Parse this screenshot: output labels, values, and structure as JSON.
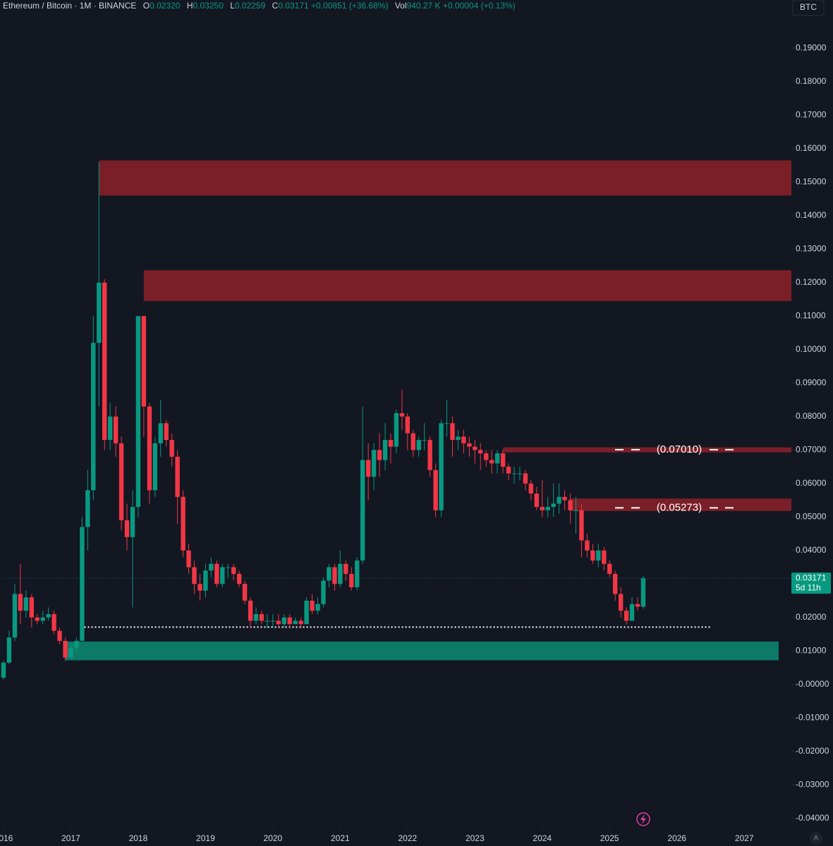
{
  "ui": {
    "currency": "BTC",
    "auto": "A"
  },
  "header": {
    "symbol": "Ethereum / Bitcoin · 1M · BINANCE",
    "o_label": "O",
    "o": "0.02320",
    "h_label": "H",
    "h": "0.03250",
    "l_label": "L",
    "l": "0.02259",
    "c_label": "C",
    "c": "0.03171",
    "change": "+0.00851 (+36.68%)",
    "vol_label": "Vol",
    "vol": "940.27 K",
    "vol_change": "+0.00004 (+0.13%)"
  },
  "chart_data": {
    "type": "candlestick",
    "up_color": "#089981",
    "down_color": "#f23645",
    "x": [
      2016,
      2016.083,
      2016.167,
      2016.25,
      2016.333,
      2016.417,
      2016.5,
      2016.583,
      2016.667,
      2016.75,
      2016.833,
      2016.917,
      2017,
      2017.083,
      2017.167,
      2017.25,
      2017.333,
      2017.417,
      2017.5,
      2017.583,
      2017.667,
      2017.75,
      2017.833,
      2017.917,
      2018,
      2018.083,
      2018.167,
      2018.25,
      2018.333,
      2018.417,
      2018.5,
      2018.583,
      2018.667,
      2018.75,
      2018.833,
      2018.917,
      2019,
      2019.083,
      2019.167,
      2019.25,
      2019.333,
      2019.417,
      2019.5,
      2019.583,
      2019.667,
      2019.75,
      2019.833,
      2019.917,
      2020,
      2020.083,
      2020.167,
      2020.25,
      2020.333,
      2020.417,
      2020.5,
      2020.583,
      2020.667,
      2020.75,
      2020.833,
      2020.917,
      2021,
      2021.083,
      2021.167,
      2021.25,
      2021.333,
      2021.417,
      2021.5,
      2021.583,
      2021.667,
      2021.75,
      2021.833,
      2021.917,
      2022,
      2022.083,
      2022.167,
      2022.25,
      2022.333,
      2022.417,
      2022.5,
      2022.583,
      2022.667,
      2022.75,
      2022.833,
      2022.917,
      2023,
      2023.083,
      2023.167,
      2023.25,
      2023.333,
      2023.417,
      2023.5,
      2023.583,
      2023.667,
      2023.75,
      2023.833,
      2023.917,
      2024,
      2024.083,
      2024.167,
      2024.25,
      2024.333,
      2024.417,
      2024.5,
      2024.583,
      2024.667,
      2024.75,
      2024.833,
      2024.917,
      2025,
      2025.083,
      2025.167,
      2025.25,
      2025.333,
      2025.417,
      2025.5
    ],
    "open": [
      0.002,
      0.0065,
      0.014,
      0.027,
      0.022,
      0.026,
      0.02,
      0.019,
      0.02,
      0.021,
      0.016,
      0.013,
      0.008,
      0.011,
      0.013,
      0.047,
      0.058,
      0.102,
      0.12,
      0.073,
      0.08,
      0.072,
      0.049,
      0.044,
      0.053,
      0.11,
      0.083,
      0.058,
      0.072,
      0.078,
      0.073,
      0.068,
      0.056,
      0.04,
      0.035,
      0.03,
      0.028,
      0.034,
      0.036,
      0.03,
      0.035,
      0.035,
      0.033,
      0.03,
      0.025,
      0.019,
      0.021,
      0.019,
      0.019,
      0.019,
      0.018,
      0.02,
      0.018,
      0.019,
      0.018,
      0.025,
      0.022,
      0.024,
      0.031,
      0.035,
      0.03,
      0.036,
      0.033,
      0.029,
      0.037,
      0.067,
      0.062,
      0.07,
      0.067,
      0.073,
      0.071,
      0.081,
      0.08,
      0.075,
      0.07,
      0.073,
      0.073,
      0.064,
      0.052,
      0.078,
      0.078,
      0.073,
      0.074,
      0.072,
      0.071,
      0.07,
      0.069,
      0.067,
      0.066,
      0.069,
      0.065,
      0.063,
      0.063,
      0.063,
      0.06,
      0.057,
      0.053,
      0.052,
      0.053,
      0.054,
      0.056,
      0.055,
      0.052,
      0.052,
      0.043,
      0.04,
      0.037,
      0.04,
      0.036,
      0.033,
      0.027,
      0.022,
      0.019,
      0.024,
      0.0232
    ],
    "high": [
      0.007,
      0.016,
      0.03,
      0.036,
      0.028,
      0.027,
      0.021,
      0.022,
      0.023,
      0.022,
      0.017,
      0.014,
      0.012,
      0.014,
      0.05,
      0.064,
      0.11,
      0.156,
      0.121,
      0.084,
      0.083,
      0.074,
      0.054,
      0.058,
      0.11,
      0.11,
      0.084,
      0.074,
      0.085,
      0.079,
      0.075,
      0.07,
      0.058,
      0.042,
      0.037,
      0.033,
      0.036,
      0.038,
      0.037,
      0.036,
      0.036,
      0.036,
      0.034,
      0.031,
      0.026,
      0.023,
      0.022,
      0.021,
      0.021,
      0.021,
      0.021,
      0.021,
      0.02,
      0.02,
      0.026,
      0.027,
      0.026,
      0.032,
      0.036,
      0.036,
      0.04,
      0.037,
      0.035,
      0.038,
      0.083,
      0.072,
      0.072,
      0.075,
      0.078,
      0.075,
      0.082,
      0.088,
      0.081,
      0.076,
      0.074,
      0.078,
      0.074,
      0.066,
      0.079,
      0.085,
      0.08,
      0.076,
      0.076,
      0.074,
      0.073,
      0.072,
      0.07,
      0.07,
      0.07,
      0.07,
      0.066,
      0.065,
      0.065,
      0.064,
      0.061,
      0.059,
      0.061,
      0.056,
      0.06,
      0.06,
      0.058,
      0.057,
      0.056,
      0.054,
      0.045,
      0.042,
      0.042,
      0.041,
      0.037,
      0.034,
      0.029,
      0.023,
      0.026,
      0.026,
      0.0325
    ],
    "low": [
      0.0015,
      0.006,
      0.013,
      0.018,
      0.02,
      0.017,
      0.018,
      0.018,
      0.019,
      0.015,
      0.012,
      0.007,
      0.008,
      0.01,
      0.013,
      0.04,
      0.055,
      0.083,
      0.07,
      0.07,
      0.068,
      0.046,
      0.04,
      0.023,
      0.05,
      0.074,
      0.054,
      0.056,
      0.068,
      0.071,
      0.065,
      0.048,
      0.038,
      0.033,
      0.027,
      0.025,
      0.026,
      0.032,
      0.029,
      0.029,
      0.032,
      0.031,
      0.029,
      0.024,
      0.017,
      0.018,
      0.018,
      0.017,
      0.017,
      0.017,
      0.017,
      0.017,
      0.018,
      0.017,
      0.018,
      0.021,
      0.021,
      0.023,
      0.029,
      0.028,
      0.029,
      0.031,
      0.028,
      0.028,
      0.036,
      0.055,
      0.058,
      0.062,
      0.064,
      0.066,
      0.069,
      0.076,
      0.07,
      0.068,
      0.068,
      0.07,
      0.062,
      0.05,
      0.05,
      0.074,
      0.068,
      0.07,
      0.069,
      0.068,
      0.066,
      0.064,
      0.065,
      0.063,
      0.063,
      0.063,
      0.061,
      0.06,
      0.061,
      0.058,
      0.055,
      0.052,
      0.05,
      0.05,
      0.05,
      0.051,
      0.052,
      0.048,
      0.045,
      0.038,
      0.038,
      0.036,
      0.035,
      0.034,
      0.032,
      0.025,
      0.02,
      0.018,
      0.019,
      0.022,
      0.02259
    ],
    "close": [
      0.0065,
      0.014,
      0.027,
      0.022,
      0.026,
      0.02,
      0.019,
      0.02,
      0.021,
      0.016,
      0.013,
      0.008,
      0.011,
      0.013,
      0.047,
      0.058,
      0.102,
      0.12,
      0.073,
      0.08,
      0.072,
      0.049,
      0.044,
      0.053,
      0.11,
      0.083,
      0.058,
      0.072,
      0.078,
      0.073,
      0.068,
      0.056,
      0.04,
      0.035,
      0.03,
      0.028,
      0.034,
      0.036,
      0.03,
      0.035,
      0.035,
      0.033,
      0.03,
      0.025,
      0.019,
      0.021,
      0.019,
      0.019,
      0.019,
      0.018,
      0.02,
      0.018,
      0.019,
      0.018,
      0.025,
      0.022,
      0.024,
      0.031,
      0.035,
      0.03,
      0.036,
      0.033,
      0.029,
      0.037,
      0.067,
      0.062,
      0.07,
      0.067,
      0.073,
      0.071,
      0.081,
      0.08,
      0.075,
      0.07,
      0.073,
      0.073,
      0.064,
      0.052,
      0.078,
      0.078,
      0.073,
      0.074,
      0.072,
      0.071,
      0.07,
      0.069,
      0.067,
      0.066,
      0.069,
      0.065,
      0.063,
      0.063,
      0.063,
      0.06,
      0.057,
      0.053,
      0.052,
      0.053,
      0.054,
      0.056,
      0.055,
      0.052,
      0.052,
      0.043,
      0.04,
      0.037,
      0.04,
      0.036,
      0.033,
      0.027,
      0.022,
      0.019,
      0.024,
      0.0232,
      0.03171
    ],
    "last_price_label": "0.03171",
    "countdown": "5d 11h",
    "zones": [
      {
        "low": 0.146,
        "high": 0.1565,
        "from": 2017.42,
        "color": "#7a1f28"
      },
      {
        "low": 0.1145,
        "high": 0.1237,
        "from": 2018.083,
        "color": "#7a1f28"
      },
      {
        "low": 0.0693,
        "high": 0.0708,
        "from": 2023.42,
        "color": "#7a1f28",
        "level": 0.0701,
        "label": "(0.07010)"
      },
      {
        "low": 0.0518,
        "high": 0.0555,
        "from": 2024.41,
        "color": "#7a1f28",
        "level": 0.05273,
        "label": "(0.05273)"
      },
      {
        "low": 0.0072,
        "high": 0.0128,
        "from": 2016.92,
        "to": 2027.51,
        "color": "#0d7a68"
      }
    ],
    "support_line": {
      "value": 0.0171,
      "from": 2017.2,
      "to": 2026.5
    },
    "xlim": [
      2016,
      2027.7
    ],
    "xticks": [
      2016,
      2017,
      2018,
      2019,
      2020,
      2021,
      2022,
      2023,
      2024,
      2025,
      2026,
      2027
    ],
    "ylim": [
      -0.043,
      0.2044
    ],
    "yticks": [
      {
        "value": 0.19,
        "label": "0.19000"
      },
      {
        "value": 0.18,
        "label": "0.18000"
      },
      {
        "value": 0.17,
        "label": "0.17000"
      },
      {
        "value": 0.16,
        "label": "0.16000"
      },
      {
        "value": 0.15,
        "label": "0.15000"
      },
      {
        "value": 0.14,
        "label": "0.14000"
      },
      {
        "value": 0.13,
        "label": "0.13000"
      },
      {
        "value": 0.12,
        "label": "0.12000"
      },
      {
        "value": 0.11,
        "label": "0.11000"
      },
      {
        "value": 0.1,
        "label": "0.10000"
      },
      {
        "value": 0.09,
        "label": "0.09000"
      },
      {
        "value": 0.08,
        "label": "0.08000"
      },
      {
        "value": 0.07,
        "label": "0.07000"
      },
      {
        "value": 0.06,
        "label": "0.06000"
      },
      {
        "value": 0.05,
        "label": "0.05000"
      },
      {
        "value": 0.04,
        "label": "0.04000"
      },
      {
        "value": 0.03,
        "label": "0.03000"
      },
      {
        "value": 0.02,
        "label": "0.02000"
      },
      {
        "value": 0.01,
        "label": "0.01000"
      },
      {
        "value": 0,
        "label": "-0.00000"
      },
      {
        "value": -0.01,
        "label": "-0.01000"
      },
      {
        "value": -0.02,
        "label": "-0.02000"
      },
      {
        "value": -0.03,
        "label": "-0.03000"
      },
      {
        "value": -0.04,
        "label": "-0.04000"
      }
    ]
  }
}
